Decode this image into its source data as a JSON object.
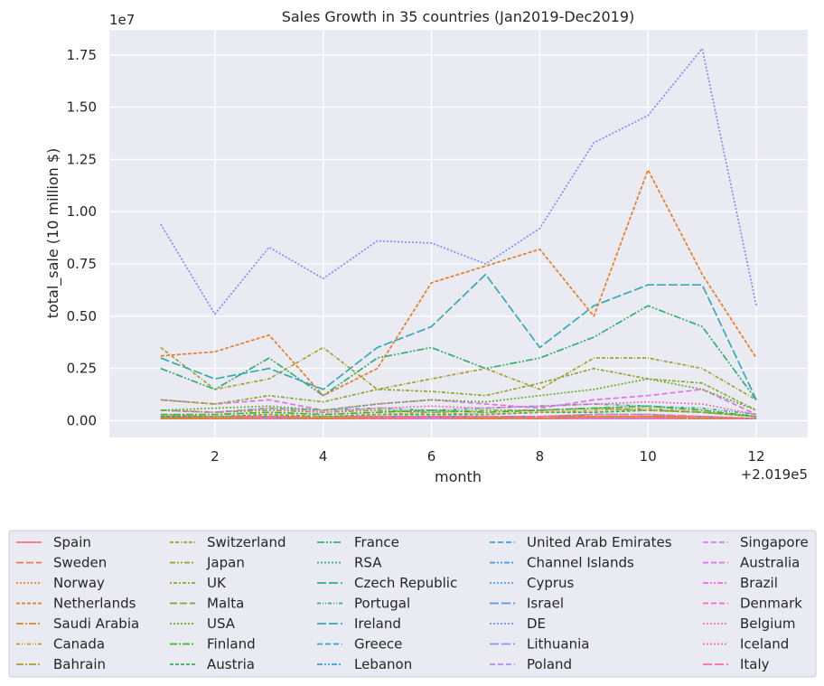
{
  "chart_data": {
    "type": "line",
    "title": "Sales Growth in 35 countries (Jan2019-Dec2019)",
    "xlabel": "month",
    "ylabel": "total_sale (10 million $)",
    "x_offset_label": "+2.019e5",
    "y_scale_label": "1e7",
    "x": [
      1,
      2,
      3,
      4,
      5,
      6,
      7,
      8,
      9,
      10,
      11,
      12
    ],
    "x_ticks": [
      2,
      4,
      6,
      8,
      10,
      12
    ],
    "y_ticks": [
      "0.00",
      "0.25",
      "0.50",
      "0.75",
      "1.00",
      "1.25",
      "1.50",
      "1.75"
    ],
    "xlim": [
      0.05,
      12.95
    ],
    "ylim": [
      -0.08,
      1.87
    ],
    "grid": true,
    "legend_position": "bottom",
    "legend_columns": 5,
    "series": [
      {
        "name": "Spain",
        "color": "#f77189",
        "dash": "",
        "values": [
          0.02,
          0.01,
          0.02,
          0.01,
          0.02,
          0.02,
          0.02,
          0.01,
          0.02,
          0.02,
          0.02,
          0.01
        ]
      },
      {
        "name": "Sweden",
        "color": "#f7754f",
        "dash": "8,3",
        "values": [
          0.01,
          0.01,
          0.02,
          0.01,
          0.01,
          0.02,
          0.01,
          0.02,
          0.02,
          0.02,
          0.01,
          0.01
        ]
      },
      {
        "name": "Norway",
        "color": "#dc8932",
        "dash": "2,2",
        "values": [
          0.01,
          0.01,
          0.01,
          0.01,
          0.02,
          0.02,
          0.01,
          0.01,
          0.02,
          0.02,
          0.02,
          0.01
        ]
      },
      {
        "name": "Netherlands",
        "color": "#e0802e",
        "dash": "4,2",
        "values": [
          0.31,
          0.33,
          0.41,
          0.12,
          0.25,
          0.66,
          0.74,
          0.82,
          0.5,
          1.2,
          0.7,
          0.3
        ]
      },
      {
        "name": "Saudi Arabia",
        "color": "#d28a2d",
        "dash": "8,2,2,2",
        "values": [
          0.01,
          0.01,
          0.02,
          0.01,
          0.02,
          0.02,
          0.01,
          0.02,
          0.02,
          0.02,
          0.01,
          0.01
        ]
      },
      {
        "name": "Canada",
        "color": "#c3952d",
        "dash": "4,2,1,2,1,2",
        "values": [
          0.03,
          0.02,
          0.03,
          0.02,
          0.03,
          0.04,
          0.03,
          0.04,
          0.05,
          0.06,
          0.04,
          0.02
        ]
      },
      {
        "name": "Bahrain",
        "color": "#ae9d31",
        "dash": "8,2,2,2",
        "values": [
          0.01,
          0.01,
          0.01,
          0.01,
          0.01,
          0.01,
          0.01,
          0.01,
          0.01,
          0.01,
          0.01,
          0.01
        ]
      },
      {
        "name": "Switzerland",
        "color": "#a3a131",
        "dash": "4,2,4,2,1,2",
        "values": [
          0.35,
          0.15,
          0.2,
          0.35,
          0.15,
          0.2,
          0.25,
          0.15,
          0.3,
          0.3,
          0.25,
          0.1
        ]
      },
      {
        "name": "Japan",
        "color": "#97a431",
        "dash": "6,2,2,2,2,2",
        "values": [
          0.05,
          0.04,
          0.05,
          0.04,
          0.05,
          0.04,
          0.05,
          0.05,
          0.06,
          0.05,
          0.04,
          0.02
        ]
      },
      {
        "name": "UK",
        "color": "#8ba731",
        "dash": "2,2,4,2",
        "values": [
          0.1,
          0.08,
          0.12,
          0.09,
          0.15,
          0.14,
          0.12,
          0.18,
          0.25,
          0.2,
          0.18,
          0.05
        ]
      },
      {
        "name": "Malta",
        "color": "#7fa932",
        "dash": "8,3",
        "values": [
          0.01,
          0.01,
          0.01,
          0.01,
          0.01,
          0.01,
          0.01,
          0.01,
          0.01,
          0.01,
          0.01,
          0.01
        ]
      },
      {
        "name": "USA",
        "color": "#6aac32",
        "dash": "2,2",
        "values": [
          0.05,
          0.06,
          0.07,
          0.05,
          0.08,
          0.1,
          0.09,
          0.12,
          0.15,
          0.2,
          0.15,
          0.05
        ]
      },
      {
        "name": "Finland",
        "color": "#42b132",
        "dash": "8,2,2,2",
        "values": [
          0.03,
          0.03,
          0.04,
          0.03,
          0.04,
          0.05,
          0.04,
          0.05,
          0.06,
          0.07,
          0.05,
          0.02
        ]
      },
      {
        "name": "Austria",
        "color": "#33b04f",
        "dash": "4,2",
        "values": [
          0.02,
          0.02,
          0.03,
          0.02,
          0.03,
          0.03,
          0.03,
          0.04,
          0.04,
          0.05,
          0.04,
          0.02
        ]
      },
      {
        "name": "France",
        "color": "#34ae72",
        "dash": "8,2,2,2,2,2",
        "values": [
          0.25,
          0.15,
          0.3,
          0.12,
          0.3,
          0.35,
          0.25,
          0.3,
          0.4,
          0.55,
          0.45,
          0.1
        ]
      },
      {
        "name": "RSA",
        "color": "#35ac85",
        "dash": "2,2",
        "values": [
          0.01,
          0.01,
          0.01,
          0.01,
          0.01,
          0.01,
          0.01,
          0.01,
          0.01,
          0.01,
          0.01,
          0.01
        ]
      },
      {
        "name": "Czech Republic",
        "color": "#36ab95",
        "dash": "10,3",
        "values": [
          0.01,
          0.01,
          0.01,
          0.01,
          0.01,
          0.01,
          0.01,
          0.01,
          0.01,
          0.01,
          0.01,
          0.01
        ]
      },
      {
        "name": "Portugal",
        "color": "#37aaa2",
        "dash": "4,2,1,2,1,2",
        "values": [
          0.05,
          0.04,
          0.06,
          0.05,
          0.06,
          0.05,
          0.06,
          0.07,
          0.08,
          0.07,
          0.06,
          0.03
        ]
      },
      {
        "name": "Ireland",
        "color": "#38a9b0",
        "dash": "10,3",
        "values": [
          0.3,
          0.2,
          0.25,
          0.15,
          0.35,
          0.45,
          0.7,
          0.35,
          0.55,
          0.65,
          0.65,
          0.1
        ]
      },
      {
        "name": "Greece",
        "color": "#39a7bf",
        "dash": "6,3",
        "values": [
          0.01,
          0.01,
          0.01,
          0.01,
          0.01,
          0.01,
          0.01,
          0.01,
          0.01,
          0.01,
          0.01,
          0.01
        ]
      },
      {
        "name": "Lebanon",
        "color": "#3aa4d0",
        "dash": "6,2,2,2,2,2",
        "values": [
          0.01,
          0.01,
          0.01,
          0.01,
          0.01,
          0.01,
          0.01,
          0.01,
          0.01,
          0.01,
          0.01,
          0.01
        ]
      },
      {
        "name": "United Arab Emirates",
        "color": "#3ba0e0",
        "dash": "6,3",
        "values": [
          0.01,
          0.01,
          0.01,
          0.01,
          0.01,
          0.01,
          0.01,
          0.01,
          0.01,
          0.01,
          0.01,
          0.01
        ]
      },
      {
        "name": "Channel Islands",
        "color": "#3d9cee",
        "dash": "6,2,2,2,2,2",
        "values": [
          0.02,
          0.02,
          0.02,
          0.02,
          0.02,
          0.02,
          0.02,
          0.02,
          0.03,
          0.03,
          0.02,
          0.01
        ]
      },
      {
        "name": "Cyprus",
        "color": "#4f99f4",
        "dash": "2,2",
        "values": [
          0.01,
          0.01,
          0.01,
          0.01,
          0.01,
          0.01,
          0.01,
          0.01,
          0.01,
          0.01,
          0.01,
          0.01
        ]
      },
      {
        "name": "Israel",
        "color": "#5b95f4",
        "dash": "10,3",
        "values": [
          0.01,
          0.01,
          0.01,
          0.01,
          0.01,
          0.01,
          0.01,
          0.01,
          0.01,
          0.01,
          0.01,
          0.01
        ]
      },
      {
        "name": "DE",
        "color": "#7a8ff4",
        "dash": "2,2",
        "values": [
          0.94,
          0.51,
          0.83,
          0.68,
          0.86,
          0.85,
          0.75,
          0.92,
          1.33,
          1.46,
          1.78,
          0.55
        ]
      },
      {
        "name": "Lithuania",
        "color": "#9a8df4",
        "dash": "10,3",
        "values": [
          0.01,
          0.01,
          0.01,
          0.01,
          0.01,
          0.01,
          0.01,
          0.01,
          0.01,
          0.01,
          0.01,
          0.01
        ]
      },
      {
        "name": "Poland",
        "color": "#b289f4",
        "dash": "6,3",
        "values": [
          0.01,
          0.01,
          0.01,
          0.01,
          0.01,
          0.01,
          0.01,
          0.01,
          0.01,
          0.01,
          0.01,
          0.01
        ]
      },
      {
        "name": "Singapore",
        "color": "#cc7ef4",
        "dash": "6,3",
        "values": [
          0.01,
          0.01,
          0.01,
          0.01,
          0.01,
          0.01,
          0.01,
          0.01,
          0.01,
          0.01,
          0.01,
          0.01
        ]
      },
      {
        "name": "Australia",
        "color": "#e071ee",
        "dash": "6,3",
        "values": [
          0.1,
          0.08,
          0.1,
          0.05,
          0.08,
          0.1,
          0.08,
          0.06,
          0.1,
          0.12,
          0.15,
          0.03
        ]
      },
      {
        "name": "Brazil",
        "color": "#f265dd",
        "dash": "6,2,2,2,2,2",
        "values": [
          0.01,
          0.01,
          0.01,
          0.01,
          0.01,
          0.01,
          0.01,
          0.01,
          0.01,
          0.01,
          0.01,
          0.01
        ]
      },
      {
        "name": "Denmark",
        "color": "#f56bc9",
        "dash": "6,3",
        "values": [
          0.01,
          0.01,
          0.01,
          0.01,
          0.01,
          0.01,
          0.01,
          0.01,
          0.01,
          0.01,
          0.01,
          0.01
        ]
      },
      {
        "name": "Belgium",
        "color": "#f56db9",
        "dash": "2,2",
        "values": [
          0.05,
          0.04,
          0.06,
          0.04,
          0.06,
          0.07,
          0.06,
          0.07,
          0.08,
          0.09,
          0.08,
          0.03
        ]
      },
      {
        "name": "Iceland",
        "color": "#f66fa9",
        "dash": "2,2",
        "values": [
          0.01,
          0.01,
          0.01,
          0.01,
          0.01,
          0.01,
          0.01,
          0.01,
          0.01,
          0.01,
          0.01,
          0.01
        ]
      },
      {
        "name": "Italy",
        "color": "#f77097",
        "dash": "10,3",
        "values": [
          0.02,
          0.02,
          0.02,
          0.02,
          0.02,
          0.02,
          0.02,
          0.02,
          0.03,
          0.03,
          0.02,
          0.01
        ]
      }
    ]
  }
}
